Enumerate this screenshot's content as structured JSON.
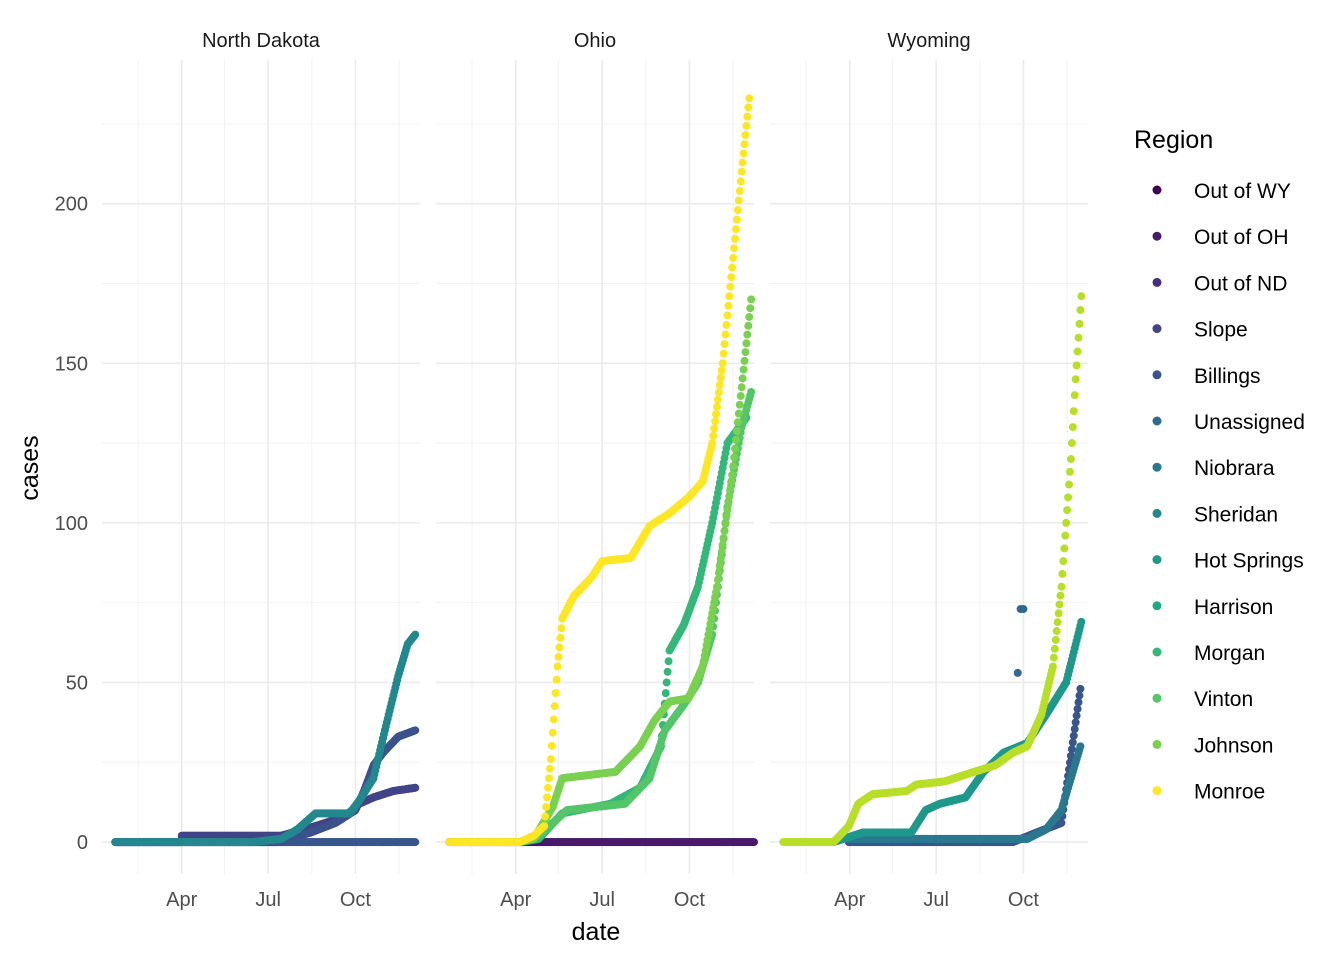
{
  "chart_data": {
    "type": "scatter",
    "xlabel": "date",
    "ylabel": "cases",
    "x_ticks": [
      "Apr",
      "Jul",
      "Oct"
    ],
    "y_ticks": [
      0,
      50,
      100,
      150,
      200
    ],
    "ylim": [
      -10,
      245
    ],
    "xlim": [
      "2020-01-08",
      "2020-12-08"
    ],
    "grid": true,
    "legend_position": "right",
    "legend_title": "Region",
    "legend": [
      {
        "label": "Out of WY",
        "color": "#440154"
      },
      {
        "label": "Out of OH",
        "color": "#481a6c"
      },
      {
        "label": "Out of ND",
        "color": "#472f7d"
      },
      {
        "label": "Slope",
        "color": "#414487"
      },
      {
        "label": "Billings",
        "color": "#39568c"
      },
      {
        "label": "Unassigned",
        "color": "#31688e"
      },
      {
        "label": "Niobrara",
        "color": "#2a788e"
      },
      {
        "label": "Sheridan",
        "color": "#23888e"
      },
      {
        "label": "Hot Springs",
        "color": "#1f988b"
      },
      {
        "label": "Harrison",
        "color": "#22a884"
      },
      {
        "label": "Morgan",
        "color": "#35b779"
      },
      {
        "label": "Vinton",
        "color": "#54c568"
      },
      {
        "label": "Johnson",
        "color": "#7ad151"
      },
      {
        "label": "Monroe",
        "color": "#fde725"
      }
    ],
    "facets": [
      {
        "title": "North Dakota",
        "series": [
          {
            "color": "#39568c",
            "points": [
              [
                "2020-01-22",
                0
              ],
              [
                "2020-12-03",
                0
              ]
            ]
          },
          {
            "color": "#414487",
            "points": [
              [
                "2020-01-22",
                0
              ],
              [
                "2020-03-31",
                0
              ],
              [
                "2020-04-01",
                2
              ],
              [
                "2020-07-15",
                2
              ],
              [
                "2020-08-20",
                5
              ],
              [
                "2020-09-20",
                8
              ],
              [
                "2020-10-05",
                12
              ],
              [
                "2020-10-20",
                14
              ],
              [
                "2020-11-10",
                16
              ],
              [
                "2020-12-03",
                17
              ]
            ]
          },
          {
            "color": "#3b528b",
            "points": [
              [
                "2020-01-22",
                0
              ],
              [
                "2020-07-10",
                0
              ],
              [
                "2020-08-15",
                3
              ],
              [
                "2020-09-10",
                6
              ],
              [
                "2020-10-01",
                10
              ],
              [
                "2020-10-10",
                16
              ],
              [
                "2020-10-20",
                24
              ],
              [
                "2020-10-30",
                28
              ],
              [
                "2020-11-15",
                33
              ],
              [
                "2020-12-03",
                35
              ]
            ]
          },
          {
            "color": "#23888e",
            "points": [
              [
                "2020-01-22",
                0
              ],
              [
                "2020-06-15",
                0
              ],
              [
                "2020-07-15",
                1
              ],
              [
                "2020-08-01",
                4
              ],
              [
                "2020-08-20",
                9
              ],
              [
                "2020-09-25",
                9
              ],
              [
                "2020-10-05",
                13
              ],
              [
                "2020-10-20",
                20
              ],
              [
                "2020-11-01",
                35
              ],
              [
                "2020-11-15",
                52
              ],
              [
                "2020-11-25",
                62
              ],
              [
                "2020-12-03",
                65
              ]
            ]
          }
        ]
      },
      {
        "title": "Ohio",
        "series": [
          {
            "color": "#481a6c",
            "points": [
              [
                "2020-01-22",
                0
              ],
              [
                "2020-12-08",
                0
              ]
            ]
          },
          {
            "color": "#35b779",
            "points": [
              [
                "2020-04-05",
                0
              ],
              [
                "2020-04-25",
                1
              ],
              [
                "2020-05-20",
                9
              ],
              [
                "2020-07-10",
                12
              ],
              [
                "2020-08-10",
                17
              ],
              [
                "2020-09-01",
                30
              ],
              [
                "2020-09-10",
                60
              ],
              [
                "2020-09-25",
                68
              ],
              [
                "2020-10-10",
                80
              ],
              [
                "2020-10-25",
                100
              ],
              [
                "2020-11-10",
                125
              ],
              [
                "2020-11-30",
                133
              ]
            ]
          },
          {
            "color": "#54c568",
            "points": [
              [
                "2020-04-05",
                0
              ],
              [
                "2020-04-25",
                2
              ],
              [
                "2020-05-25",
                10
              ],
              [
                "2020-07-25",
                12
              ],
              [
                "2020-08-20",
                20
              ],
              [
                "2020-09-05",
                35
              ],
              [
                "2020-09-25",
                43
              ],
              [
                "2020-10-10",
                50
              ],
              [
                "2020-10-25",
                65
              ],
              [
                "2020-11-10",
                105
              ],
              [
                "2020-11-25",
                130
              ],
              [
                "2020-12-05",
                141
              ]
            ]
          },
          {
            "color": "#7ad151",
            "points": [
              [
                "2020-04-05",
                0
              ],
              [
                "2020-04-20",
                1
              ],
              [
                "2020-05-10",
                11
              ],
              [
                "2020-05-20",
                20
              ],
              [
                "2020-07-15",
                22
              ],
              [
                "2020-08-10",
                30
              ],
              [
                "2020-08-25",
                38
              ],
              [
                "2020-09-10",
                44
              ],
              [
                "2020-09-30",
                45
              ],
              [
                "2020-10-15",
                55
              ],
              [
                "2020-10-30",
                80
              ],
              [
                "2020-11-15",
                115
              ],
              [
                "2020-12-05",
                170
              ]
            ]
          },
          {
            "color": "#fde725",
            "points": [
              [
                "2020-01-22",
                0
              ],
              [
                "2020-04-05",
                0
              ],
              [
                "2020-04-20",
                2
              ],
              [
                "2020-05-01",
                5
              ],
              [
                "2020-05-08",
                26
              ],
              [
                "2020-05-15",
                55
              ],
              [
                "2020-05-20",
                70
              ],
              [
                "2020-06-01",
                77
              ],
              [
                "2020-06-20",
                83
              ],
              [
                "2020-07-01",
                88
              ],
              [
                "2020-07-31",
                89
              ],
              [
                "2020-08-20",
                99
              ],
              [
                "2020-09-10",
                103
              ],
              [
                "2020-09-30",
                108
              ],
              [
                "2020-10-15",
                113
              ],
              [
                "2020-10-25",
                125
              ],
              [
                "2020-11-05",
                150
              ],
              [
                "2020-11-15",
                180
              ],
              [
                "2020-11-25",
                210
              ],
              [
                "2020-12-03",
                233
              ]
            ]
          }
        ]
      },
      {
        "title": "Wyoming",
        "series": [
          {
            "color": "#39568c",
            "points": [
              [
                "2020-03-31",
                0
              ],
              [
                "2020-09-20",
                0
              ],
              [
                "2020-10-15",
                3
              ],
              [
                "2020-11-10",
                6
              ],
              [
                "2020-11-30",
                48
              ]
            ]
          },
          {
            "color": "#2a788e",
            "points": [
              [
                "2020-03-31",
                1
              ],
              [
                "2020-10-05",
                1
              ],
              [
                "2020-10-25",
                4
              ],
              [
                "2020-11-10",
                10
              ],
              [
                "2020-11-30",
                30
              ]
            ]
          },
          {
            "color": "#31688e",
            "isolated": true,
            "points": [
              [
                "2020-09-25",
                53
              ],
              [
                "2020-09-28",
                73
              ],
              [
                "2020-10-01",
                73
              ]
            ]
          },
          {
            "color": "#1f988b",
            "points": [
              [
                "2020-03-15",
                0
              ],
              [
                "2020-04-15",
                3
              ],
              [
                "2020-06-05",
                3
              ],
              [
                "2020-06-20",
                10
              ],
              [
                "2020-07-05",
                12
              ],
              [
                "2020-08-01",
                14
              ],
              [
                "2020-08-20",
                22
              ],
              [
                "2020-09-10",
                28
              ],
              [
                "2020-10-05",
                31
              ],
              [
                "2020-10-25",
                40
              ],
              [
                "2020-11-15",
                50
              ],
              [
                "2020-12-01",
                69
              ]
            ]
          },
          {
            "color": "#b8de29",
            "points": [
              [
                "2020-01-22",
                0
              ],
              [
                "2020-03-15",
                0
              ],
              [
                "2020-03-31",
                5
              ],
              [
                "2020-04-10",
                12
              ],
              [
                "2020-04-25",
                15
              ],
              [
                "2020-05-31",
                16
              ],
              [
                "2020-06-10",
                18
              ],
              [
                "2020-07-10",
                19
              ],
              [
                "2020-08-10",
                22
              ],
              [
                "2020-09-01",
                24
              ],
              [
                "2020-09-20",
                28
              ],
              [
                "2020-10-05",
                30
              ],
              [
                "2020-10-20",
                40
              ],
              [
                "2020-11-01",
                55
              ],
              [
                "2020-11-10",
                80
              ],
              [
                "2020-11-20",
                120
              ],
              [
                "2020-11-25",
                145
              ],
              [
                "2020-12-01",
                171
              ]
            ]
          }
        ]
      }
    ]
  }
}
